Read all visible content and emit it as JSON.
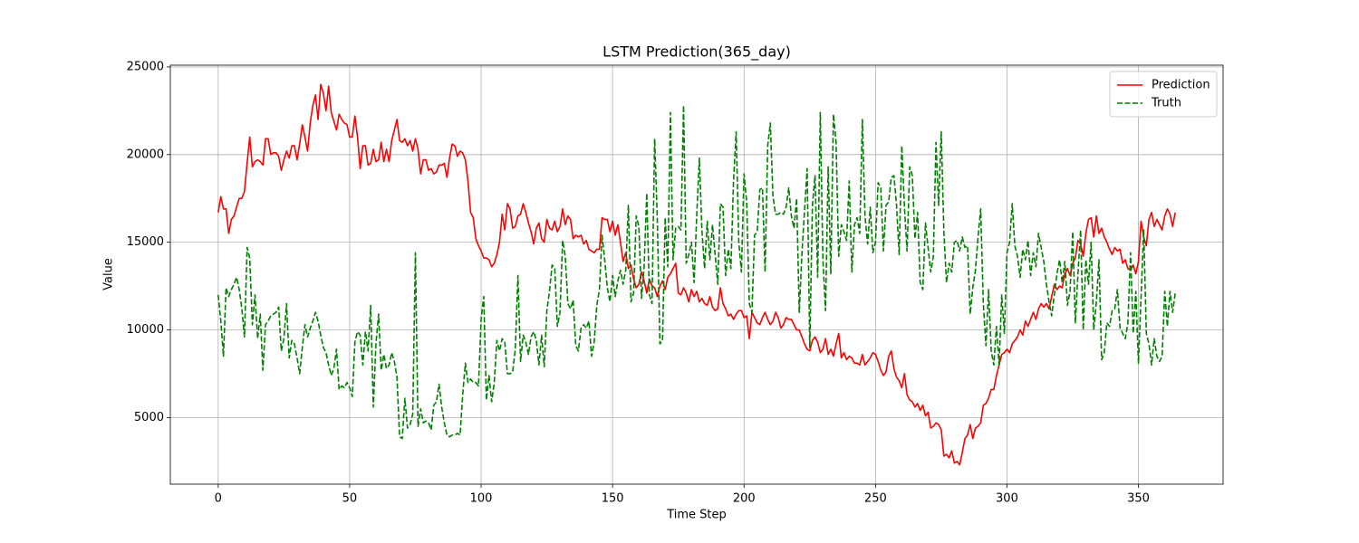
{
  "chart_data": {
    "type": "line",
    "title": "LSTM Prediction(365_day)",
    "x_label": "Time Step",
    "y_label": "Value",
    "xlim": [
      -18.2,
      382.2
    ],
    "ylim": [
      1200,
      25100
    ],
    "xticks": [
      0,
      50,
      100,
      150,
      200,
      250,
      300,
      350
    ],
    "yticks": [
      5000,
      10000,
      15000,
      20000,
      25000
    ],
    "grid": true,
    "legend_loc": "upper right",
    "x": [
      0,
      1,
      2,
      3,
      4,
      5,
      6,
      7,
      8,
      9,
      10,
      11,
      12,
      13,
      14,
      15,
      16,
      17,
      18,
      19,
      20,
      21,
      22,
      23,
      24,
      25,
      26,
      27,
      28,
      29,
      30,
      31,
      32,
      33,
      34,
      35,
      36,
      37,
      38,
      39,
      40,
      41,
      42,
      43,
      44,
      45,
      46,
      47,
      48,
      49,
      50,
      51,
      52,
      53,
      54,
      55,
      56,
      57,
      58,
      59,
      60,
      61,
      62,
      63,
      64,
      65,
      66,
      67,
      68,
      69,
      70,
      71,
      72,
      73,
      74,
      75,
      76,
      77,
      78,
      79,
      80,
      81,
      82,
      83,
      84,
      85,
      86,
      87,
      88,
      89,
      90,
      91,
      92,
      93,
      94,
      95,
      96,
      97,
      98,
      99,
      100,
      101,
      102,
      103,
      104,
      105,
      106,
      107,
      108,
      109,
      110,
      111,
      112,
      113,
      114,
      115,
      116,
      117,
      118,
      119,
      120,
      121,
      122,
      123,
      124,
      125,
      126,
      127,
      128,
      129,
      130,
      131,
      132,
      133,
      134,
      135,
      136,
      137,
      138,
      139,
      140,
      141,
      142,
      143,
      144,
      145,
      146,
      147,
      148,
      149,
      150,
      151,
      152,
      153,
      154,
      155,
      156,
      157,
      158,
      159,
      160,
      161,
      162,
      163,
      164,
      165,
      166,
      167,
      168,
      169,
      170,
      171,
      172,
      173,
      174,
      175,
      176,
      177,
      178,
      179,
      180,
      181,
      182,
      183,
      184,
      185,
      186,
      187,
      188,
      189,
      190,
      191,
      192,
      193,
      194,
      195,
      196,
      197,
      198,
      199,
      200,
      201,
      202,
      203,
      204,
      205,
      206,
      207,
      208,
      209,
      210,
      211,
      212,
      213,
      214,
      215,
      216,
      217,
      218,
      219,
      220,
      221,
      222,
      223,
      224,
      225,
      226,
      227,
      228,
      229,
      230,
      231,
      232,
      233,
      234,
      235,
      236,
      237,
      238,
      239,
      240,
      241,
      242,
      243,
      244,
      245,
      246,
      247,
      248,
      249,
      250,
      251,
      252,
      253,
      254,
      255,
      256,
      257,
      258,
      259,
      260,
      261,
      262,
      263,
      264,
      265,
      266,
      267,
      268,
      269,
      270,
      271,
      272,
      273,
      274,
      275,
      276,
      277,
      278,
      279,
      280,
      281,
      282,
      283,
      284,
      285,
      286,
      287,
      288,
      289,
      290,
      291,
      292,
      293,
      294,
      295,
      296,
      297,
      298,
      299,
      300,
      301,
      302,
      303,
      304,
      305,
      306,
      307,
      308,
      309,
      310,
      311,
      312,
      313,
      314,
      315,
      316,
      317,
      318,
      319,
      320,
      321,
      322,
      323,
      324,
      325,
      326,
      327,
      328,
      329,
      330,
      331,
      332,
      333,
      334,
      335,
      336,
      337,
      338,
      339,
      340,
      341,
      342,
      343,
      344,
      345,
      346,
      347,
      348,
      349,
      350,
      351,
      352,
      353,
      354,
      355,
      356,
      357,
      358,
      359,
      360,
      361,
      362,
      363,
      364
    ],
    "series": [
      {
        "name": "Prediction",
        "color": "#ff0000",
        "linestyle": "solid",
        "values": [
          16700,
          17600,
          16900,
          16900,
          15500,
          16300,
          16500,
          17000,
          17500,
          17500,
          17900,
          19500,
          21000,
          19300,
          19600,
          19700,
          19600,
          19400,
          20900,
          20900,
          20000,
          20100,
          20100,
          19900,
          19100,
          19700,
          20200,
          19800,
          20500,
          20500,
          19700,
          20600,
          21700,
          21000,
          20200,
          21800,
          22800,
          23400,
          22000,
          24000,
          23500,
          22500,
          23900,
          22400,
          21900,
          21400,
          22300,
          22000,
          21800,
          21700,
          21000,
          21000,
          22200,
          21000,
          19200,
          20500,
          20500,
          19400,
          19500,
          20300,
          19600,
          19700,
          20700,
          19600,
          20300,
          19600,
          20800,
          21400,
          22000,
          20800,
          20700,
          20900,
          20500,
          20800,
          20200,
          20900,
          20300,
          18900,
          19700,
          19700,
          19100,
          19200,
          18900,
          19000,
          19400,
          19400,
          19500,
          18700,
          19800,
          20600,
          20500,
          19900,
          20200,
          20100,
          19700,
          18500,
          16700,
          16400,
          15200,
          14800,
          14500,
          14100,
          14100,
          14000,
          13600,
          13800,
          14300,
          15000,
          16600,
          15700,
          17200,
          16900,
          15800,
          15900,
          16500,
          16600,
          17200,
          16700,
          16100,
          15600,
          14900,
          15800,
          16100,
          15200,
          15000,
          16300,
          15800,
          15700,
          16200,
          15600,
          15900,
          16900,
          16000,
          16500,
          16300,
          15200,
          15400,
          15300,
          15400,
          14900,
          15100,
          14600,
          14500,
          14400,
          14600,
          14600,
          16400,
          16300,
          16300,
          15600,
          16200,
          15400,
          16000,
          15000,
          13900,
          14400,
          13500,
          13700,
          12900,
          12400,
          12600,
          13300,
          12800,
          12100,
          12900,
          12500,
          12400,
          11900,
          12500,
          12800,
          12300,
          13000,
          13200,
          13500,
          13800,
          12100,
          12000,
          12400,
          12100,
          11600,
          12300,
          11900,
          12200,
          11600,
          11800,
          11500,
          11400,
          11900,
          11300,
          11100,
          11200,
          12400,
          11500,
          11200,
          10800,
          10900,
          10600,
          10900,
          11100,
          11100,
          10700,
          10800,
          9500,
          11000,
          10700,
          10400,
          10300,
          10700,
          11000,
          10600,
          10300,
          10500,
          11000,
          10700,
          10100,
          10300,
          10700,
          10600,
          10600,
          10300,
          10000,
          10000,
          9600,
          9200,
          8900,
          8800,
          9400,
          9600,
          9300,
          8700,
          8900,
          9500,
          8600,
          8900,
          8500,
          9200,
          9800,
          8400,
          8700,
          8300,
          8500,
          8400,
          8100,
          8100,
          8000,
          8600,
          8000,
          8200,
          8400,
          8700,
          8600,
          8200,
          7700,
          7400,
          7600,
          8500,
          8800,
          7800,
          7300,
          7100,
          6700,
          7500,
          6300,
          6000,
          5900,
          5600,
          5800,
          5400,
          5700,
          5100,
          5300,
          4400,
          4500,
          4700,
          4600,
          4300,
          2800,
          2900,
          2700,
          3100,
          2400,
          2500,
          2300,
          3000,
          3800,
          4000,
          4600,
          3800,
          4400,
          4500,
          4700,
          5700,
          5800,
          6100,
          6600,
          6600,
          7400,
          8000,
          8600,
          8700,
          8900,
          8700,
          9200,
          9400,
          9600,
          10000,
          9700,
          10500,
          10200,
          10600,
          11000,
          10600,
          11200,
          11500,
          11300,
          11500,
          11200,
          11900,
          12600,
          12300,
          12500,
          12400,
          13200,
          13500,
          13100,
          13800,
          14100,
          15100,
          14900,
          14200,
          15500,
          16300,
          16400,
          15300,
          16500,
          15500,
          15800,
          15300,
          15000,
          14600,
          14300,
          14700,
          14500,
          14600,
          13800,
          14000,
          13500,
          13400,
          13700,
          13200,
          13900,
          16200,
          15300,
          14800,
          16300,
          16700,
          15900,
          16300,
          16000,
          15700,
          16500,
          16900,
          16600,
          15900,
          16700
        ]
      },
      {
        "name": "Truth",
        "color": "#008000",
        "linestyle": "dashed",
        "values": [
          12000,
          10500,
          8500,
          12400,
          11900,
          12300,
          12600,
          13000,
          12300,
          11200,
          9600,
          14700,
          14100,
          10300,
          12000,
          9500,
          10900,
          7700,
          10300,
          10500,
          10800,
          10900,
          11000,
          11300,
          8800,
          9500,
          11500,
          8400,
          9400,
          9200,
          8400,
          7500,
          9000,
          10300,
          9600,
          10100,
          10500,
          11000,
          10500,
          9700,
          9000,
          8700,
          8000,
          7400,
          7800,
          8900,
          6600,
          6800,
          6700,
          7000,
          6700,
          6200,
          9300,
          9900,
          9700,
          8000,
          9900,
          8800,
          11400,
          5600,
          9200,
          10900,
          7700,
          8600,
          7800,
          8000,
          8700,
          8200,
          7300,
          3900,
          3800,
          6100,
          4400,
          4600,
          5200,
          14400,
          4500,
          5500,
          4700,
          4800,
          4700,
          4300,
          5700,
          5900,
          6900,
          5600,
          4700,
          4000,
          3900,
          4000,
          4000,
          4100,
          4000,
          6300,
          8100,
          7000,
          7200,
          7000,
          7000,
          6800,
          10600,
          11900,
          6000,
          7400,
          5900,
          7000,
          9400,
          8800,
          9500,
          9300,
          7500,
          7500,
          7600,
          8900,
          13100,
          8200,
          9700,
          9300,
          8600,
          9600,
          9900,
          9400,
          8000,
          9700,
          7900,
          11100,
          12200,
          13700,
          13500,
          10200,
          11000,
          15100,
          14200,
          11500,
          11200,
          11700,
          9100,
          8800,
          10100,
          10300,
          10100,
          10500,
          8500,
          9300,
          11400,
          12300,
          15400,
          14000,
          12400,
          11600,
          13100,
          11900,
          12800,
          13400,
          12600,
          13400,
          17100,
          11600,
          12100,
          16500,
          15900,
          11800,
          13600,
          17800,
          12000,
          11500,
          20900,
          16400,
          9200,
          9400,
          16400,
          13600,
          22400,
          14000,
          15800,
          15900,
          15700,
          22800,
          13800,
          14300,
          15000,
          12700,
          16500,
          19800,
          15600,
          13500,
          16200,
          14000,
          16000,
          14300,
          12600,
          17200,
          17000,
          13100,
          14600,
          13500,
          18500,
          21300,
          15000,
          13300,
          18900,
          17300,
          11500,
          11000,
          15400,
          15600,
          18000,
          18100,
          13300,
          20500,
          21800,
          17600,
          16600,
          16600,
          16700,
          16600,
          17000,
          18100,
          16500,
          15800,
          17500,
          11000,
          14300,
          16800,
          19200,
          9000,
          17100,
          18800,
          13000,
          22400,
          14000,
          11100,
          19300,
          13200,
          22300,
          20700,
          14200,
          16000,
          15600,
          15100,
          18500,
          13300,
          16000,
          16400,
          15500,
          22000,
          16500,
          14900,
          17000,
          14400,
          15000,
          18400,
          18100,
          14500,
          17100,
          17300,
          18700,
          18800,
          17100,
          14300,
          20500,
          17000,
          14500,
          19300,
          18800,
          15200,
          16700,
          12700,
          12300,
          16100,
          14700,
          13300,
          14200,
          20700,
          17100,
          21300,
          15600,
          12700,
          13800,
          13300,
          15000,
          15100,
          14500,
          15300,
          14700,
          14800,
          10900,
          12400,
          13400,
          15300,
          16900,
          11500,
          9100,
          12300,
          8800,
          8000,
          10200,
          8000,
          12000,
          9800,
          14400,
          15000,
          17200,
          14800,
          14200,
          13000,
          14600,
          14000,
          15100,
          13100,
          14400,
          13600,
          15500,
          14700,
          13900,
          12600,
          11600,
          10800,
          12000,
          13200,
          14000,
          12700,
          13900,
          11400,
          12200,
          15600,
          10400,
          13200,
          15700,
          10000,
          14000,
          12600,
          15000,
          10000,
          11600,
          14000,
          8300,
          8700,
          10400,
          10200,
          11100,
          11200,
          12300,
          10100,
          9800,
          9500,
          10400,
          14400,
          9800,
          12200,
          8100,
          11900,
          15700,
          9800,
          9200,
          8000,
          9500,
          8500,
          8200,
          8500,
          12200,
          10200,
          12200,
          11000,
          12100
        ]
      }
    ]
  }
}
